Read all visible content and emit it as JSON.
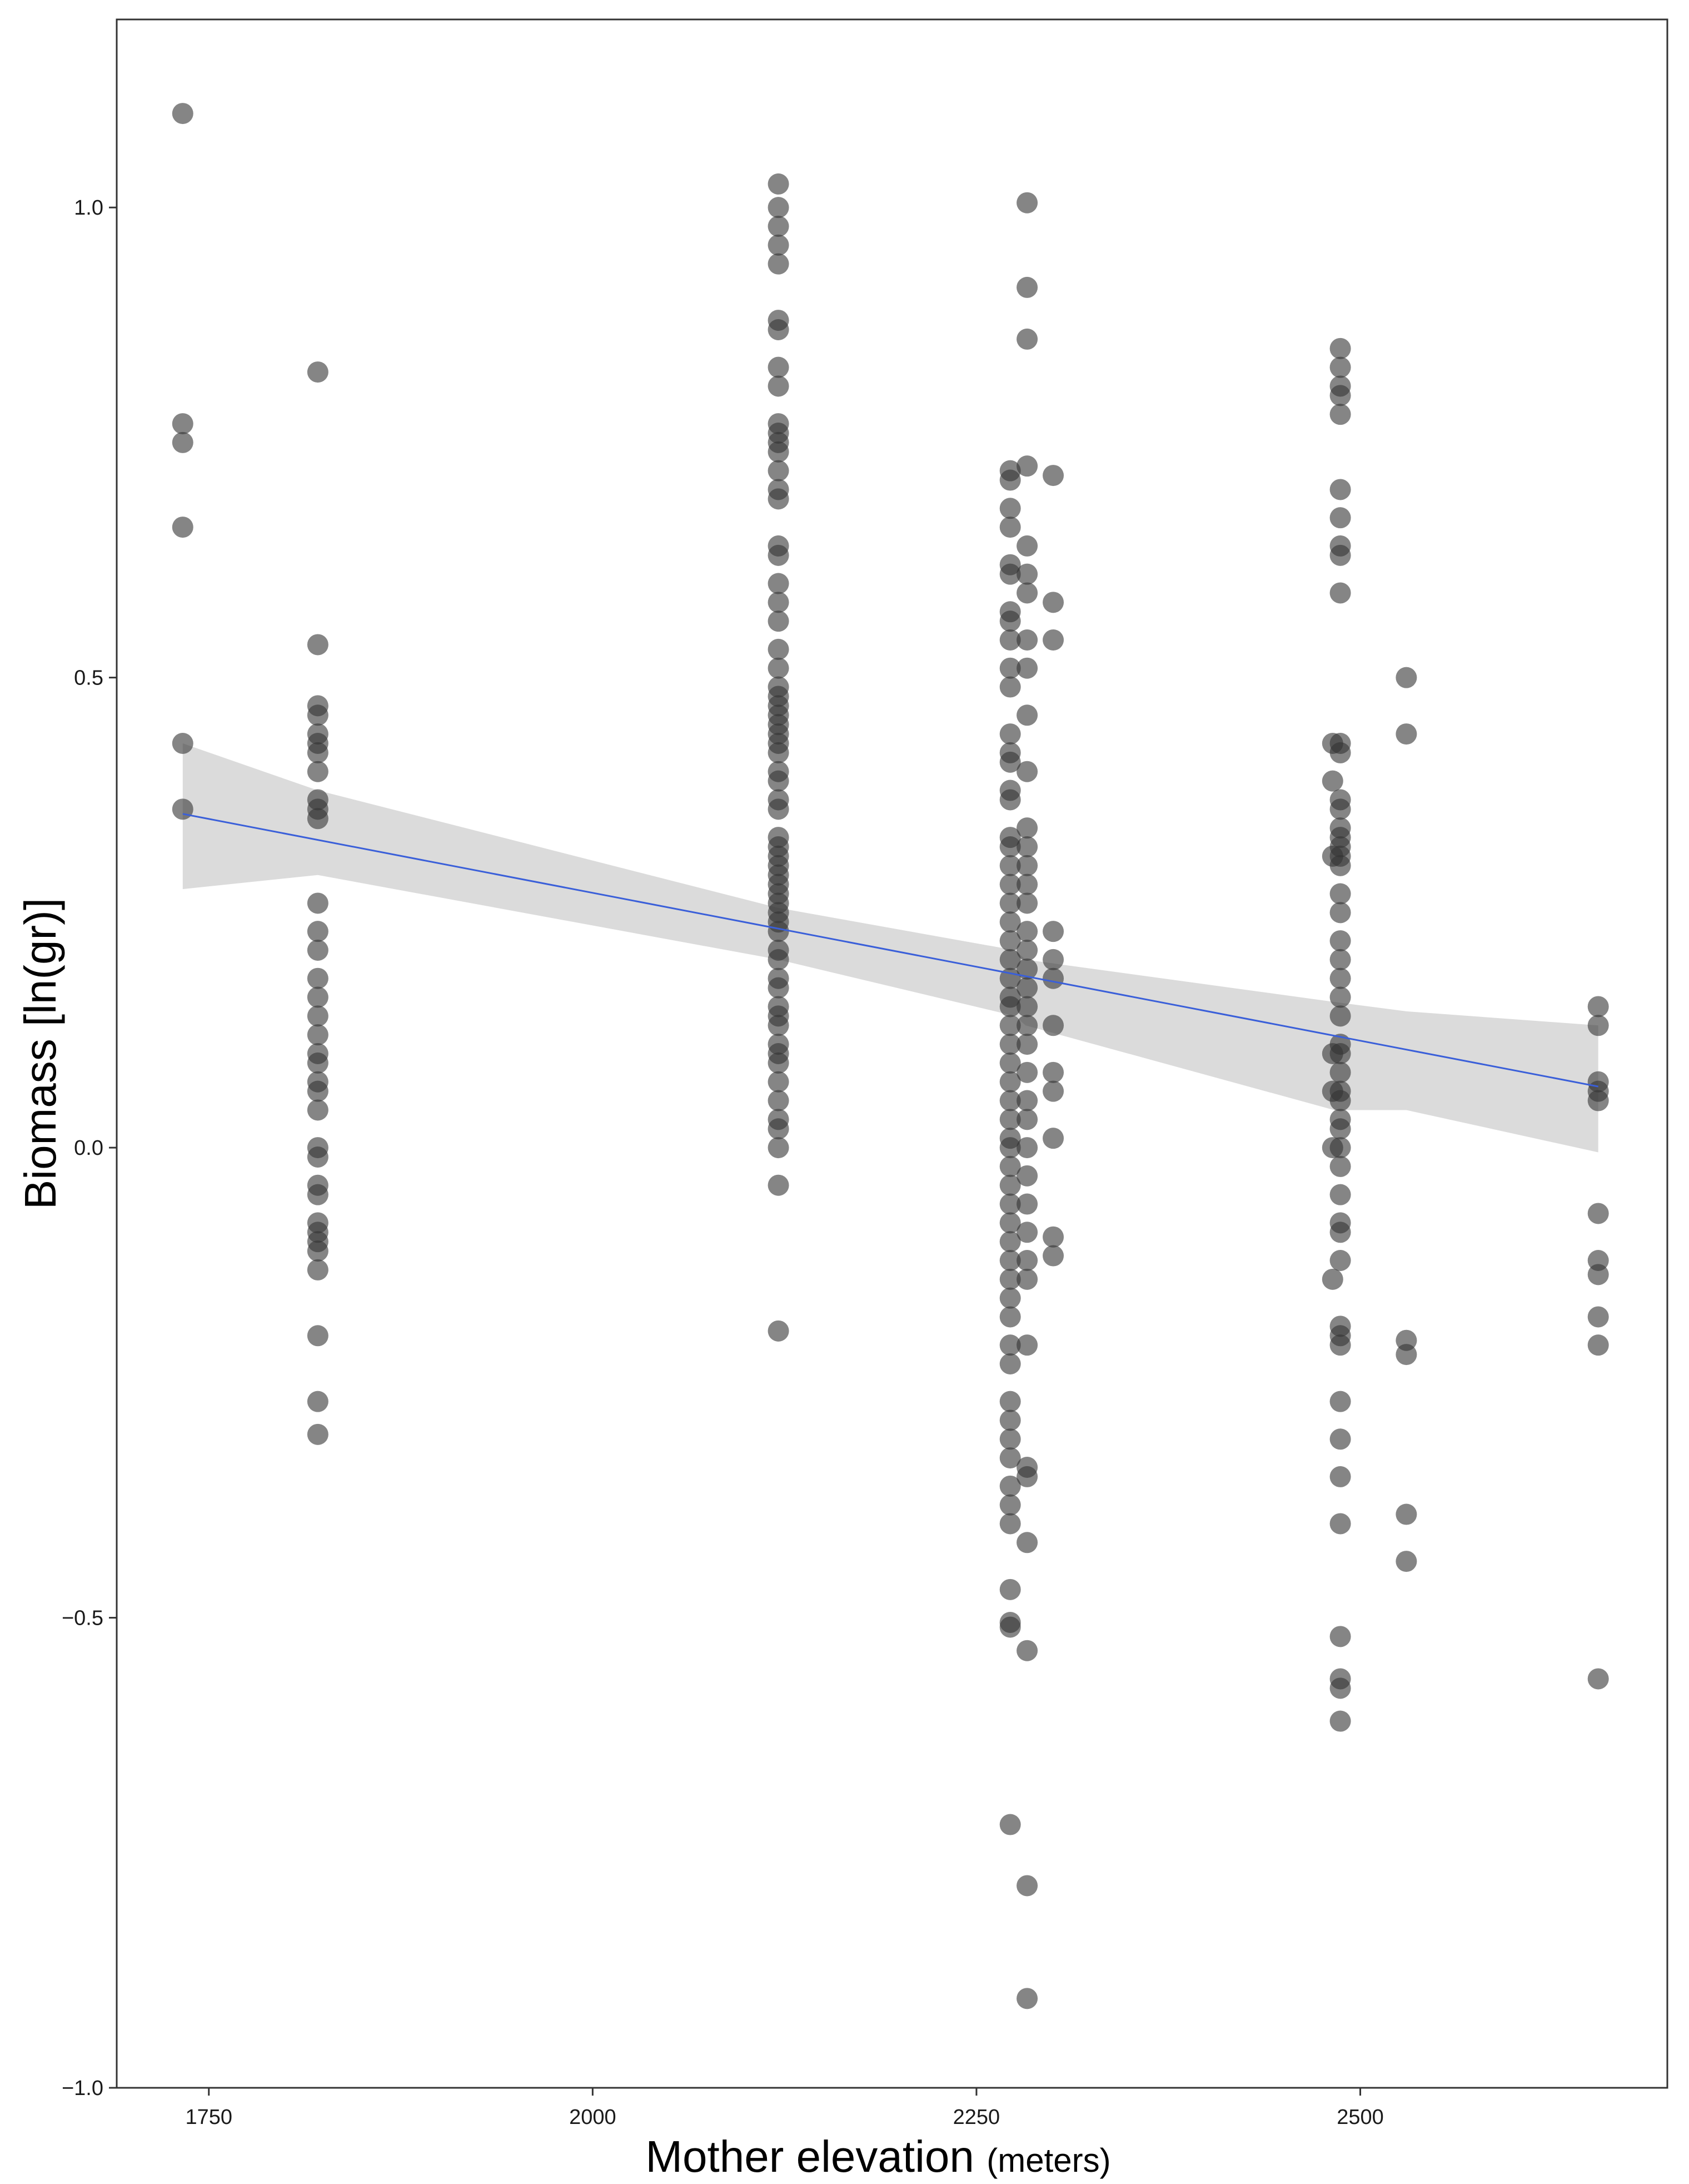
{
  "chart_data": {
    "type": "scatter",
    "xlabel_main": "Mother elevation",
    "xlabel_unit": "(meters)",
    "ylabel": "Biomass [ln(gr)]",
    "xlim": [
      1690,
      2700
    ],
    "ylim": [
      -1.0,
      1.2
    ],
    "x_ticks": [
      1750,
      2000,
      2250,
      2500
    ],
    "y_ticks": [
      -1.0,
      -0.5,
      0.0,
      0.5,
      1.0
    ],
    "x_tick_labels": [
      "1750",
      "2000",
      "2250",
      "2500"
    ],
    "y_tick_labels": [
      "−1.0",
      "−0.5",
      "0.0",
      "0.5",
      "1.0"
    ],
    "grid": false,
    "point_color": "#333333",
    "point_opacity": 0.6,
    "fit_line": {
      "color": "#3a5fd9",
      "x": [
        1733,
        2655
      ],
      "y": [
        0.355,
        0.065
      ]
    },
    "confidence_band": {
      "color": "#d9d9d9",
      "x": [
        1733,
        1821,
        2121,
        2275,
        2282,
        2483,
        2530,
        2655
      ],
      "lower": [
        0.275,
        0.29,
        0.2,
        0.14,
        0.13,
        0.04,
        0.04,
        -0.005
      ],
      "upper": [
        0.43,
        0.38,
        0.255,
        0.21,
        0.2,
        0.155,
        0.145,
        0.13
      ]
    },
    "groups": [
      {
        "x": 1733,
        "y": [
          1.1,
          0.77,
          0.75,
          0.66,
          0.43,
          0.36
        ]
      },
      {
        "x": 1821,
        "y": [
          0.825,
          0.535,
          0.47,
          0.46,
          0.44,
          0.43,
          0.42,
          0.4,
          0.37,
          0.36,
          0.35,
          0.26,
          0.23,
          0.21,
          0.18,
          0.16,
          0.14,
          0.12,
          0.1,
          0.09,
          0.07,
          0.06,
          0.04,
          0.0,
          -0.01,
          -0.04,
          -0.05,
          -0.08,
          -0.09,
          -0.1,
          -0.11,
          -0.13,
          -0.2,
          -0.27,
          -0.305
        ]
      },
      {
        "x": 2121,
        "y": [
          1.025,
          1.0,
          0.98,
          0.96,
          0.94,
          0.88,
          0.87,
          0.83,
          0.81,
          0.77,
          0.76,
          0.75,
          0.74,
          0.72,
          0.7,
          0.69,
          0.64,
          0.63,
          0.6,
          0.58,
          0.56,
          0.53,
          0.51,
          0.49,
          0.48,
          0.47,
          0.46,
          0.45,
          0.44,
          0.43,
          0.42,
          0.4,
          0.39,
          0.37,
          0.36,
          0.33,
          0.32,
          0.31,
          0.3,
          0.29,
          0.28,
          0.27,
          0.26,
          0.25,
          0.24,
          0.23,
          0.21,
          0.2,
          0.18,
          0.17,
          0.15,
          0.14,
          0.13,
          0.11,
          0.1,
          0.09,
          0.07,
          0.05,
          0.03,
          0.02,
          0.0,
          -0.04,
          -0.195
        ]
      },
      {
        "x": 2272,
        "y": [
          0.72,
          0.71,
          0.68,
          0.66,
          0.62,
          0.61,
          0.57,
          0.56,
          0.54,
          0.51,
          0.49,
          0.44,
          0.42,
          0.41,
          0.38,
          0.37,
          0.33,
          0.32,
          0.3,
          0.28,
          0.26,
          0.24,
          0.22,
          0.2,
          0.18,
          0.16,
          0.15,
          0.13,
          0.11,
          0.09,
          0.07,
          0.05,
          0.03,
          0.01,
          0.0,
          -0.02,
          -0.04,
          -0.06,
          -0.08,
          -0.1,
          -0.12,
          -0.14,
          -0.16,
          -0.18,
          -0.21,
          -0.23,
          -0.27,
          -0.29,
          -0.31,
          -0.33,
          -0.36,
          -0.38,
          -0.4,
          -0.47,
          -0.505,
          -0.51,
          -0.72
        ]
      },
      {
        "x": 2283,
        "y": [
          1.005,
          0.915,
          0.86,
          0.725,
          0.64,
          0.61,
          0.59,
          0.54,
          0.51,
          0.46,
          0.4,
          0.34,
          0.32,
          0.3,
          0.28,
          0.26,
          0.23,
          0.21,
          0.19,
          0.17,
          0.15,
          0.13,
          0.11,
          0.08,
          0.05,
          0.03,
          0.0,
          -0.03,
          -0.06,
          -0.09,
          -0.12,
          -0.14,
          -0.21,
          -0.34,
          -0.35,
          -0.42,
          -0.535,
          -0.785,
          -0.905
        ]
      },
      {
        "x": 2300,
        "y": [
          0.715,
          0.58,
          0.54,
          0.23,
          0.2,
          0.18,
          0.13,
          0.08,
          0.06,
          0.01,
          -0.095,
          -0.115
        ]
      },
      {
        "x": 2482,
        "y": [
          0.43,
          0.39,
          0.31,
          0.1,
          0.06,
          0.0,
          -0.14
        ]
      },
      {
        "x": 2487,
        "y": [
          0.85,
          0.83,
          0.81,
          0.8,
          0.78,
          0.7,
          0.67,
          0.64,
          0.63,
          0.59,
          0.43,
          0.42,
          0.37,
          0.36,
          0.34,
          0.33,
          0.32,
          0.31,
          0.3,
          0.27,
          0.25,
          0.22,
          0.2,
          0.18,
          0.16,
          0.14,
          0.11,
          0.1,
          0.08,
          0.06,
          0.05,
          0.03,
          0.02,
          0.0,
          -0.02,
          -0.05,
          -0.08,
          -0.09,
          -0.12,
          -0.19,
          -0.2,
          -0.21,
          -0.27,
          -0.31,
          -0.35,
          -0.4,
          -0.52,
          -0.565,
          -0.575,
          -0.61
        ]
      },
      {
        "x": 2530,
        "y": [
          0.5,
          0.44,
          -0.205,
          -0.22,
          -0.39,
          -0.44
        ]
      },
      {
        "x": 2655,
        "y": [
          0.15,
          0.13,
          0.07,
          0.06,
          0.05,
          -0.07,
          -0.12,
          -0.135,
          -0.18,
          -0.21,
          -0.565
        ]
      }
    ]
  }
}
